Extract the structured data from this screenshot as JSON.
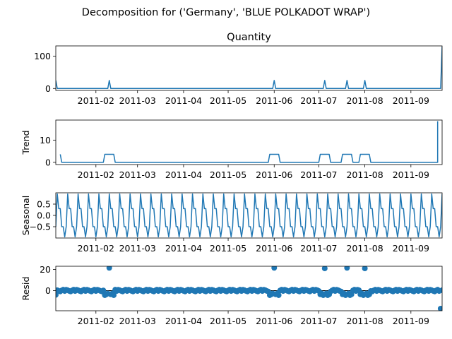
{
  "suptitle": "Decomposition for ('Germany', 'BLUE POLKADOT WRAP')",
  "series_color": "#1f77b4",
  "x_start": "2011-01-05",
  "x_end": "2011-09-22",
  "x_tick_labels": [
    "2011-02",
    "2011-03",
    "2011-04",
    "2011-05",
    "2011-06",
    "2011-07",
    "2011-08",
    "2011-09"
  ],
  "chart_data": [
    {
      "type": "line",
      "title": "Quantity",
      "ylabel": "",
      "ylim": [
        -6,
        132
      ],
      "yticks": [
        0,
        100
      ],
      "baseline": 0,
      "spikes": [
        {
          "x": "2011-01-05",
          "y": 25
        },
        {
          "x": "2011-02-10",
          "y": 25
        },
        {
          "x": "2011-06-01",
          "y": 25
        },
        {
          "x": "2011-07-05",
          "y": 25
        },
        {
          "x": "2011-07-20",
          "y": 25
        },
        {
          "x": "2011-08-01",
          "y": 25
        },
        {
          "x": "2011-09-22",
          "y": 130
        }
      ]
    },
    {
      "type": "line",
      "title": "",
      "ylabel": "Trend",
      "ylim": [
        -1,
        19
      ],
      "yticks": [
        0,
        10
      ],
      "baseline": 0,
      "start": {
        "x": "2011-01-08",
        "y": 3.6
      },
      "plateaus": [
        {
          "from": "2011-02-07",
          "to": "2011-02-13",
          "y": 3.6
        },
        {
          "from": "2011-05-29",
          "to": "2011-06-04",
          "y": 3.6
        },
        {
          "from": "2011-07-02",
          "to": "2011-07-08",
          "y": 3.6
        },
        {
          "from": "2011-07-17",
          "to": "2011-07-23",
          "y": 3.6
        },
        {
          "from": "2011-07-29",
          "to": "2011-08-04",
          "y": 3.6
        }
      ],
      "end": {
        "x": "2011-09-19",
        "y": 18.5
      }
    },
    {
      "type": "line",
      "title": "",
      "ylabel": "Seasonal",
      "ylim": [
        -1.0,
        1.0
      ],
      "yticks": [
        -0.5,
        0.0,
        0.5
      ],
      "ytick_labels": [
        "−0.5",
        "0.0",
        "0.5"
      ],
      "period_days": 7,
      "first_peak": "2011-01-06",
      "pattern": [
        0.95,
        0.3,
        0.3,
        -0.5,
        -0.5,
        -0.95,
        -0.5
      ]
    },
    {
      "type": "scatter",
      "title": "",
      "ylabel": "Resid",
      "ylim": [
        -19,
        23
      ],
      "yticks": [
        0,
        20
      ],
      "outliers_high": [
        {
          "x": "2011-02-10",
          "y": 21.5
        },
        {
          "x": "2011-06-01",
          "y": 21.5
        },
        {
          "x": "2011-07-05",
          "y": 21.0
        },
        {
          "x": "2011-07-20",
          "y": 21.5
        },
        {
          "x": "2011-08-01",
          "y": 21.0
        }
      ],
      "outliers_low": [
        {
          "x": "2011-01-05",
          "y": -4.0
        },
        {
          "x": "2011-09-21",
          "y": -17.0
        }
      ],
      "dips": [
        {
          "from": "2011-02-07",
          "to": "2011-02-13",
          "y": -3.5
        },
        {
          "from": "2011-05-29",
          "to": "2011-06-04",
          "y": -3.5
        },
        {
          "from": "2011-07-02",
          "to": "2011-07-08",
          "y": -3.5
        },
        {
          "from": "2011-07-17",
          "to": "2011-07-23",
          "y": -3.5
        },
        {
          "from": "2011-07-29",
          "to": "2011-08-04",
          "y": -3.5
        }
      ]
    }
  ]
}
